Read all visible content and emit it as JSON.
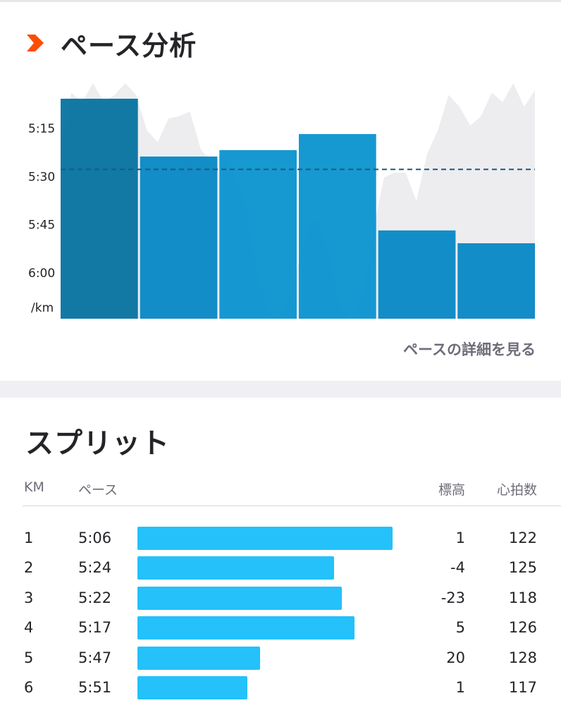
{
  "pace_section": {
    "title": "ペース分析",
    "link": "ペースの詳細を見る",
    "accent_color": "#fc4c02"
  },
  "chart_data": {
    "type": "bar",
    "categories": [
      "1",
      "2",
      "3",
      "4",
      "5",
      "6"
    ],
    "values": [
      5.1,
      5.4,
      5.3667,
      5.2833,
      5.7833,
      5.85
    ],
    "y_unit": "/km",
    "yticks": [
      "5:15",
      "5:30",
      "5:45",
      "6:00"
    ],
    "ytick_values": [
      5.25,
      5.5,
      5.75,
      6.0
    ],
    "average": 5.4667,
    "bar_colors": [
      "#0673a0",
      "#0788c4",
      "#0993cf",
      "#0993cf",
      "#0788c4",
      "#0788c4"
    ],
    "average_line_color": "#1c5a80",
    "elevation_profile": [
      0.72,
      0.96,
      0.92,
      1.0,
      0.92,
      0.95,
      1.0,
      0.95,
      0.8,
      0.75,
      0.85,
      0.86,
      0.88,
      0.72,
      0.66,
      0.7,
      0.62,
      0.52,
      0.28,
      0.06,
      0.0,
      0.05,
      0.22,
      0.4,
      0.42,
      0.25,
      0.05,
      0.0,
      0.1,
      0.38,
      0.6,
      0.62,
      0.62,
      0.5,
      0.7,
      0.8,
      0.95,
      0.9,
      0.82,
      0.86,
      0.96,
      0.92,
      1.0,
      0.9,
      0.97
    ],
    "elevation_color": "#ededf0"
  },
  "splits_section": {
    "title": "スプリット",
    "headers": {
      "km": "KM",
      "pace": "ペース",
      "elevation": "標高",
      "heart_rate": "心拍数"
    },
    "rows": [
      {
        "km": "1",
        "pace": "5:06",
        "elevation": "1",
        "heart_rate": "122",
        "bar_fraction": 1.0
      },
      {
        "km": "2",
        "pace": "5:24",
        "elevation": "-4",
        "heart_rate": "125",
        "bar_fraction": 0.77
      },
      {
        "km": "3",
        "pace": "5:22",
        "elevation": "-23",
        "heart_rate": "118",
        "bar_fraction": 0.8
      },
      {
        "km": "4",
        "pace": "5:17",
        "elevation": "5",
        "heart_rate": "126",
        "bar_fraction": 0.85
      },
      {
        "km": "5",
        "pace": "5:47",
        "elevation": "20",
        "heart_rate": "128",
        "bar_fraction": 0.48
      },
      {
        "km": "6",
        "pace": "5:51",
        "elevation": "1",
        "heart_rate": "117",
        "bar_fraction": 0.43
      }
    ],
    "bar_color": "#24c1fb"
  }
}
